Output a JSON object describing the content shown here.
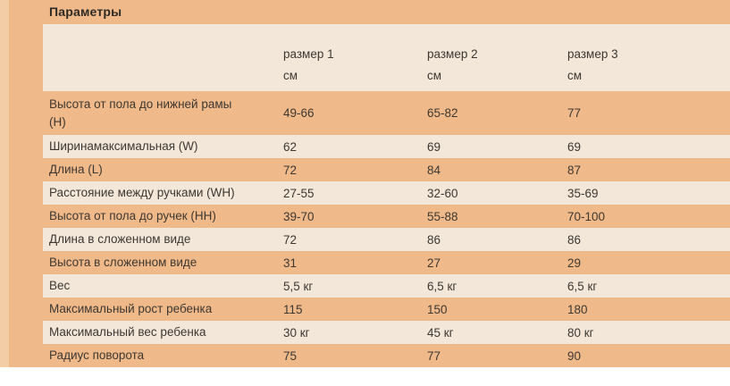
{
  "page": {
    "title": "Параметры"
  },
  "table": {
    "columns": [
      {
        "label": "",
        "unit": ""
      },
      {
        "label": "размер 1",
        "unit": "см"
      },
      {
        "label": "размер 2",
        "unit": "см"
      },
      {
        "label": "размер 3",
        "unit": "см"
      }
    ],
    "rows": [
      {
        "label": "Высота от пола до нижней рамы (H)",
        "values": [
          "49-66",
          "65-82",
          "77"
        ]
      },
      {
        "label": "Ширинамаксимальная (W)",
        "values": [
          "62",
          "69",
          "69"
        ]
      },
      {
        "label": "Длина (L)",
        "values": [
          "72",
          "84",
          "87"
        ]
      },
      {
        "label": "Расстояние между ручками (WH)",
        "values": [
          "27-55",
          "32-60",
          "35-69"
        ]
      },
      {
        "label": "Высота от пола до ручек (HH)",
        "values": [
          "39-70",
          "55-88",
          "70-100"
        ]
      },
      {
        "label": "Длина в сложенном виде",
        "values": [
          "72",
          "86",
          "86"
        ]
      },
      {
        "label": "Высота в сложенном виде",
        "values": [
          "31",
          "27",
          "29"
        ]
      },
      {
        "label": "Вес",
        "values": [
          "5,5 кг",
          "6,5 кг",
          "6,5 кг"
        ]
      },
      {
        "label": "Максимальный рост ребенка",
        "values": [
          "115",
          "150",
          "180"
        ]
      },
      {
        "label": "Максимальный вес ребенка",
        "values": [
          "30 кг",
          "45 кг",
          "80 кг"
        ]
      },
      {
        "label": "Радиус поворота",
        "values": [
          "75",
          "77",
          "90"
        ]
      }
    ]
  },
  "colors": {
    "background": "#efb98a",
    "row_alt": "#f3e7da",
    "left_strip": "#f3cda6",
    "text": "#3e3831",
    "title_text": "#2e2a25",
    "page_bg": "#ffffff"
  }
}
